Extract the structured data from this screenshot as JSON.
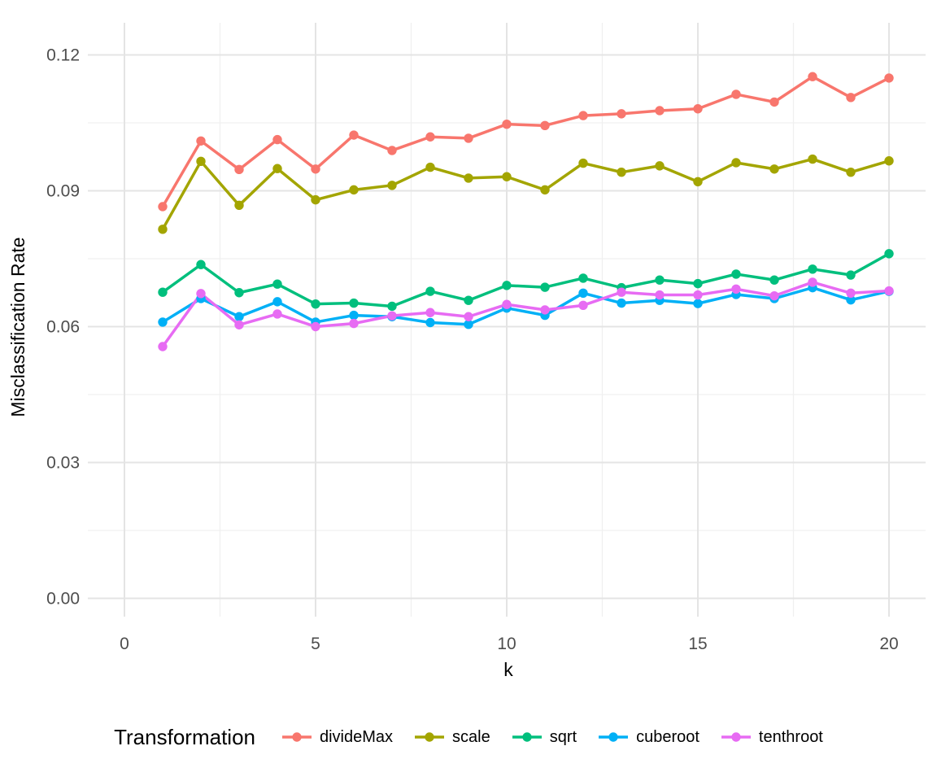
{
  "figure": {
    "background": "#ffffff"
  },
  "chart_data": {
    "type": "line",
    "title": "",
    "xlabel": "k",
    "ylabel": "Misclassification Rate",
    "x": [
      1,
      2,
      3,
      4,
      5,
      6,
      7,
      8,
      9,
      10,
      11,
      12,
      13,
      14,
      15,
      16,
      17,
      18,
      19,
      20
    ],
    "series": [
      {
        "name": "divideMax",
        "color": "#F8766D",
        "values": [
          0.0865,
          0.101,
          0.0947,
          0.1013,
          0.0948,
          0.1023,
          0.0989,
          0.1019,
          0.1016,
          0.1047,
          0.1044,
          0.1066,
          0.107,
          0.1077,
          0.1081,
          0.1113,
          0.1096,
          0.1152,
          0.1106,
          0.1149
        ]
      },
      {
        "name": "scale",
        "color": "#A3A500",
        "values": [
          0.0815,
          0.0965,
          0.0868,
          0.0949,
          0.088,
          0.0902,
          0.0912,
          0.0952,
          0.0928,
          0.0931,
          0.0902,
          0.0961,
          0.0941,
          0.0955,
          0.092,
          0.0962,
          0.0948,
          0.097,
          0.0941,
          0.0966
        ]
      },
      {
        "name": "sqrt",
        "color": "#00BF7D",
        "values": [
          0.0676,
          0.0737,
          0.0675,
          0.0694,
          0.065,
          0.0652,
          0.0645,
          0.0678,
          0.0658,
          0.0691,
          0.0687,
          0.0707,
          0.0686,
          0.0703,
          0.0695,
          0.0716,
          0.0703,
          0.0727,
          0.0714,
          0.0761
        ]
      },
      {
        "name": "cuberoot",
        "color": "#00B0F6",
        "values": [
          0.061,
          0.0662,
          0.0622,
          0.0655,
          0.061,
          0.0625,
          0.0622,
          0.0609,
          0.0605,
          0.0641,
          0.0625,
          0.0674,
          0.0652,
          0.0658,
          0.0651,
          0.0671,
          0.0662,
          0.0686,
          0.0659,
          0.0678
        ]
      },
      {
        "name": "tenthroot",
        "color": "#E76BF3",
        "values": [
          0.0556,
          0.0673,
          0.0604,
          0.0628,
          0.06,
          0.0607,
          0.0624,
          0.0631,
          0.0622,
          0.0649,
          0.0637,
          0.0647,
          0.0676,
          0.067,
          0.067,
          0.0683,
          0.0668,
          0.0698,
          0.0674,
          0.0679
        ]
      }
    ],
    "xlim": [
      0,
      20
    ],
    "ylim": [
      0,
      0.12
    ],
    "x_ticks": {
      "values": [
        0,
        5,
        10,
        15,
        20
      ],
      "labels": [
        "0",
        "5",
        "10",
        "15",
        "20"
      ]
    },
    "y_ticks": {
      "values": [
        0,
        0.03,
        0.06,
        0.09,
        0.12
      ],
      "labels": [
        "0.00",
        "0.03",
        "0.06",
        "0.09",
        "0.12"
      ]
    },
    "x_minor": [
      2.5,
      7.5,
      12.5,
      17.5
    ],
    "y_minor": [
      0.015,
      0.045,
      0.075,
      0.105
    ],
    "grid": true,
    "legend": {
      "title": "Transformation",
      "position": "bottom",
      "entries": [
        "divideMax",
        "scale",
        "sqrt",
        "cuberoot",
        "tenthroot"
      ]
    },
    "colors": {
      "grid_major": "#E4E4E4",
      "grid_minor": "#F0F0F0",
      "tick_text": "#4D4D4D",
      "axis_title_text": "#000000"
    }
  }
}
